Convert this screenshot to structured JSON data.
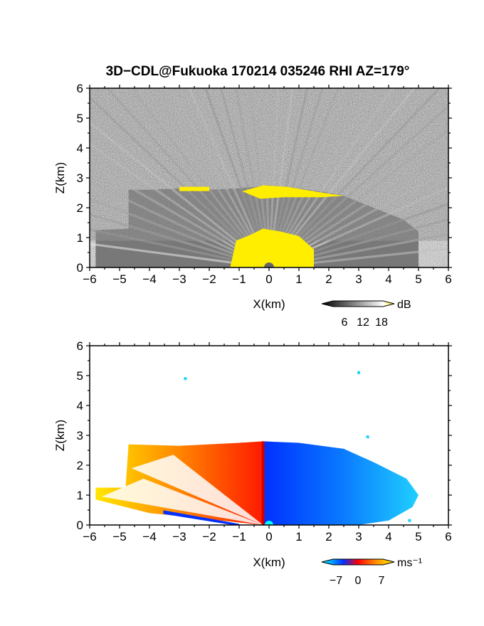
{
  "title": "3D−CDL@Fukuoka 170214 035246 RHI AZ=179°",
  "chart_data": [
    {
      "type": "heatmap",
      "field": "reflectivity",
      "xlabel": "X(km)",
      "ylabel": "Z(km)",
      "xlim": [
        -6,
        6
      ],
      "ylim": [
        0,
        6
      ],
      "xticks": [
        "−6",
        "−5",
        "−4",
        "−3",
        "−2",
        "−1",
        "0",
        "1",
        "2",
        "3",
        "4",
        "5",
        "6"
      ],
      "yticks": [
        "0",
        "1",
        "2",
        "3",
        "4",
        "5",
        "6"
      ],
      "colorbar": {
        "unit": "dB",
        "ticks": [
          "6",
          "12",
          "18"
        ],
        "range": [
          0,
          22
        ],
        "colors": [
          "#000000",
          "#ffffff",
          "#ffee00"
        ]
      },
      "echo_top_km": [
        {
          "x": -4.7,
          "z": 2.6
        },
        {
          "x": -4.0,
          "z": 2.6
        },
        {
          "x": -3.0,
          "z": 2.65
        },
        {
          "x": -2.0,
          "z": 2.6
        },
        {
          "x": -1.0,
          "z": 2.65
        },
        {
          "x": 0.0,
          "z": 2.75
        },
        {
          "x": 1.0,
          "z": 2.65
        },
        {
          "x": 2.0,
          "z": 2.5
        },
        {
          "x": 2.5,
          "z": 2.4
        },
        {
          "x": 3.5,
          "z": 2.0
        },
        {
          "x": 4.5,
          "z": 1.6
        },
        {
          "x": 5.0,
          "z": 1.2
        }
      ],
      "yellow_core": {
        "x_range": [
          -1.3,
          1.5
        ],
        "z_top": 1.3
      }
    },
    {
      "type": "heatmap",
      "field": "doppler_velocity",
      "xlabel": "X(km)",
      "ylabel": "Z(km)",
      "xlim": [
        -6,
        6
      ],
      "ylim": [
        0,
        6
      ],
      "xticks": [
        "−6",
        "−5",
        "−4",
        "−3",
        "−2",
        "−1",
        "0",
        "1",
        "2",
        "3",
        "4",
        "5",
        "6"
      ],
      "yticks": [
        "0",
        "1",
        "2",
        "3",
        "4",
        "5",
        "6"
      ],
      "colorbar": {
        "unit": "ms⁻¹",
        "ticks": [
          "−7",
          "0",
          "7"
        ],
        "range": [
          -9,
          9
        ],
        "colors": [
          "#00ffff",
          "#0030ff",
          "#ff0000",
          "#ffee00"
        ]
      },
      "negative_region": {
        "x_range": [
          -0.2,
          5.0
        ],
        "z_top": 2.8,
        "v": -7
      },
      "positive_region": {
        "x_range": [
          -5.8,
          -0.2
        ],
        "z_top": 2.7,
        "v": 7
      },
      "zero_line_x_km": -0.2
    }
  ]
}
